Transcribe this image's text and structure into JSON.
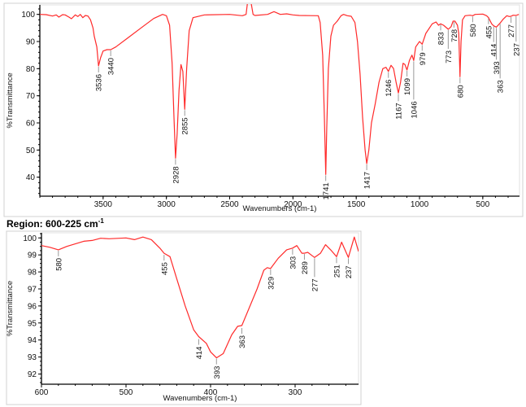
{
  "chart_data": [
    {
      "type": "line",
      "title": "",
      "xlabel": "Wavenumbers (cm-1)",
      "ylabel": "%Transmittance",
      "xlim": [
        4000,
        210
      ],
      "ylim": [
        33,
        103.5
      ],
      "x_ticks": [
        3500,
        3000,
        2500,
        2000,
        1500,
        1000,
        500
      ],
      "y_ticks": [
        40,
        50,
        60,
        70,
        80,
        90,
        100
      ],
      "grid": false,
      "line_color": "#ff2a2a",
      "points": [
        [
          4000,
          100
        ],
        [
          3950,
          99.9
        ],
        [
          3900,
          99.4
        ],
        [
          3870,
          99.8
        ],
        [
          3850,
          99
        ],
        [
          3820,
          99.9
        ],
        [
          3800,
          99.8
        ],
        [
          3770,
          99
        ],
        [
          3750,
          98.4
        ],
        [
          3720,
          99.8
        ],
        [
          3700,
          99.2
        ],
        [
          3680,
          100
        ],
        [
          3660,
          98.8
        ],
        [
          3640,
          99.6
        ],
        [
          3620,
          99.4
        ],
        [
          3600,
          98
        ],
        [
          3580,
          95
        ],
        [
          3570,
          92
        ],
        [
          3550,
          88
        ],
        [
          3536,
          81
        ],
        [
          3520,
          84
        ],
        [
          3500,
          86.5
        ],
        [
          3470,
          87
        ],
        [
          3440,
          87
        ],
        [
          3400,
          88
        ],
        [
          3300,
          91.5
        ],
        [
          3200,
          95
        ],
        [
          3100,
          98.5
        ],
        [
          3030,
          100
        ],
        [
          3000,
          99.5
        ],
        [
          2975,
          96
        ],
        [
          2955,
          82
        ],
        [
          2940,
          62
        ],
        [
          2928,
          47
        ],
        [
          2915,
          56
        ],
        [
          2900,
          72
        ],
        [
          2885,
          81.5
        ],
        [
          2870,
          79
        ],
        [
          2855,
          65
        ],
        [
          2840,
          80
        ],
        [
          2820,
          94
        ],
        [
          2790,
          98.8
        ],
        [
          2700,
          99.8
        ],
        [
          2500,
          100
        ],
        [
          2400,
          99.5
        ],
        [
          2370,
          100
        ],
        [
          2360,
          104
        ],
        [
          2330,
          104
        ],
        [
          2315,
          100
        ],
        [
          2300,
          99.6
        ],
        [
          2200,
          100
        ],
        [
          2150,
          101
        ],
        [
          2100,
          100
        ],
        [
          2050,
          100.2
        ],
        [
          2000,
          99.8
        ],
        [
          1950,
          99.6
        ],
        [
          1800,
          99.5
        ],
        [
          1785,
          97
        ],
        [
          1765,
          85
        ],
        [
          1752,
          62
        ],
        [
          1741,
          41
        ],
        [
          1733,
          58
        ],
        [
          1720,
          80
        ],
        [
          1700,
          92
        ],
        [
          1680,
          96
        ],
        [
          1650,
          97.5
        ],
        [
          1620,
          99.5
        ],
        [
          1600,
          100
        ],
        [
          1570,
          99.5
        ],
        [
          1540,
          99.3
        ],
        [
          1510,
          97
        ],
        [
          1490,
          90
        ],
        [
          1470,
          78
        ],
        [
          1450,
          62
        ],
        [
          1430,
          50
        ],
        [
          1417,
          45
        ],
        [
          1400,
          50
        ],
        [
          1380,
          60
        ],
        [
          1350,
          67
        ],
        [
          1320,
          75
        ],
        [
          1290,
          80
        ],
        [
          1265,
          80.5
        ],
        [
          1246,
          79
        ],
        [
          1225,
          81.2
        ],
        [
          1205,
          80
        ],
        [
          1185,
          75
        ],
        [
          1167,
          71
        ],
        [
          1150,
          75
        ],
        [
          1130,
          82
        ],
        [
          1115,
          81.5
        ],
        [
          1099,
          79.5
        ],
        [
          1080,
          83
        ],
        [
          1060,
          85
        ],
        [
          1046,
          83
        ],
        [
          1030,
          88
        ],
        [
          1000,
          90
        ],
        [
          979,
          89
        ],
        [
          950,
          93
        ],
        [
          900,
          96.5
        ],
        [
          870,
          97.2
        ],
        [
          850,
          96
        ],
        [
          833,
          96.5
        ],
        [
          810,
          96
        ],
        [
          773,
          94.5
        ],
        [
          750,
          95.5
        ],
        [
          735,
          97.5
        ],
        [
          720,
          97.5
        ],
        [
          700,
          96
        ],
        [
          690,
          93
        ],
        [
          680,
          77
        ],
        [
          672,
          90
        ],
        [
          660,
          98
        ],
        [
          640,
          99.5
        ],
        [
          600,
          99.7
        ],
        [
          580,
          99.5
        ],
        [
          560,
          100
        ],
        [
          500,
          100.1
        ],
        [
          470,
          99.5
        ],
        [
          455,
          98.8
        ],
        [
          430,
          96.5
        ],
        [
          414,
          95.8
        ],
        [
          393,
          95.3
        ],
        [
          363,
          96.8
        ],
        [
          340,
          98.2
        ],
        [
          310,
          99.5
        ],
        [
          290,
          99.2
        ],
        [
          277,
          99.3
        ],
        [
          260,
          99.7
        ],
        [
          237,
          99.6
        ],
        [
          215,
          100
        ]
      ],
      "peak_labels": [
        {
          "x": 3536,
          "y": 81,
          "label": "3536"
        },
        {
          "x": 3440,
          "y": 87,
          "label": "3440"
        },
        {
          "x": 2928,
          "y": 47,
          "label": "2928"
        },
        {
          "x": 2855,
          "y": 65,
          "label": "2855"
        },
        {
          "x": 1741,
          "y": 41,
          "label": "1741"
        },
        {
          "x": 1417,
          "y": 45,
          "label": "1417"
        },
        {
          "x": 1246,
          "y": 79,
          "label": "1246"
        },
        {
          "x": 1167,
          "y": 71,
          "label": "1167"
        },
        {
          "x": 1099,
          "y": 79.5,
          "label": "1099"
        },
        {
          "x": 1046,
          "y": 83,
          "label": "1046"
        },
        {
          "x": 979,
          "y": 89,
          "label": "979"
        },
        {
          "x": 833,
          "y": 96.5,
          "label": "833"
        },
        {
          "x": 773,
          "y": 94.5,
          "label": "773"
        },
        {
          "x": 728,
          "y": 97.5,
          "label": "728"
        },
        {
          "x": 680,
          "y": 77,
          "label": "680"
        },
        {
          "x": 580,
          "y": 99.5,
          "label": "580"
        },
        {
          "x": 455,
          "y": 98.8,
          "label": "455"
        },
        {
          "x": 414,
          "y": 95.8,
          "label": "414"
        },
        {
          "x": 393,
          "y": 95.3,
          "label": "393"
        },
        {
          "x": 363,
          "y": 96.8,
          "label": "363"
        },
        {
          "x": 277,
          "y": 99.3,
          "label": "277"
        },
        {
          "x": 237,
          "y": 99.6,
          "label": "237"
        }
      ]
    },
    {
      "type": "line",
      "title": "Region: 600-225 cm",
      "title_superscript": "-1",
      "xlabel": "Wavenumbers (cm-1)",
      "ylabel": "%Transmittance",
      "xlim": [
        600,
        225
      ],
      "ylim": [
        91.4,
        100.3
      ],
      "x_ticks": [
        600,
        500,
        400,
        300
      ],
      "y_ticks": [
        92,
        93,
        94,
        95,
        96,
        97,
        98,
        99,
        100
      ],
      "grid": false,
      "line_color": "#ff2a2a",
      "points": [
        [
          600,
          99.55
        ],
        [
          590,
          99.45
        ],
        [
          580,
          99.3
        ],
        [
          570,
          99.5
        ],
        [
          550,
          99.8
        ],
        [
          540,
          99.85
        ],
        [
          530,
          99.98
        ],
        [
          520,
          99.95
        ],
        [
          500,
          100
        ],
        [
          490,
          99.9
        ],
        [
          480,
          100.05
        ],
        [
          470,
          99.9
        ],
        [
          460,
          99.4
        ],
        [
          455,
          99.1
        ],
        [
          448,
          98.9
        ],
        [
          440,
          97.6
        ],
        [
          430,
          96
        ],
        [
          420,
          94.6
        ],
        [
          414,
          94.2
        ],
        [
          405,
          93.8
        ],
        [
          400,
          93.3
        ],
        [
          393,
          92.95
        ],
        [
          385,
          93.2
        ],
        [
          375,
          94.3
        ],
        [
          368,
          94.8
        ],
        [
          363,
          94.85
        ],
        [
          355,
          95.8
        ],
        [
          345,
          97
        ],
        [
          337,
          98.1
        ],
        [
          333,
          98.25
        ],
        [
          329,
          98.2
        ],
        [
          320,
          98.8
        ],
        [
          310,
          99.3
        ],
        [
          303,
          99.4
        ],
        [
          298,
          99.55
        ],
        [
          292,
          99.1
        ],
        [
          289,
          99.1
        ],
        [
          285,
          99.15
        ],
        [
          277,
          98.85
        ],
        [
          270,
          99.1
        ],
        [
          264,
          99.6
        ],
        [
          258,
          99.3
        ],
        [
          251,
          98.9
        ],
        [
          245,
          99.75
        ],
        [
          237,
          98.85
        ],
        [
          230,
          100.05
        ],
        [
          225,
          99.2
        ]
      ],
      "peak_labels": [
        {
          "x": 580,
          "y": 99.3,
          "label": "580"
        },
        {
          "x": 455,
          "y": 99.05,
          "label": "455"
        },
        {
          "x": 414,
          "y": 94.1,
          "label": "414"
        },
        {
          "x": 393,
          "y": 92.95,
          "label": "393"
        },
        {
          "x": 363,
          "y": 94.75,
          "label": "363"
        },
        {
          "x": 329,
          "y": 98.2,
          "label": "329"
        },
        {
          "x": 303,
          "y": 99.4,
          "label": "303"
        },
        {
          "x": 289,
          "y": 99.1,
          "label": "289"
        },
        {
          "x": 277,
          "y": 98.85,
          "label": "277"
        },
        {
          "x": 251,
          "y": 98.9,
          "label": "251"
        },
        {
          "x": 237,
          "y": 98.85,
          "label": "237"
        }
      ]
    }
  ]
}
